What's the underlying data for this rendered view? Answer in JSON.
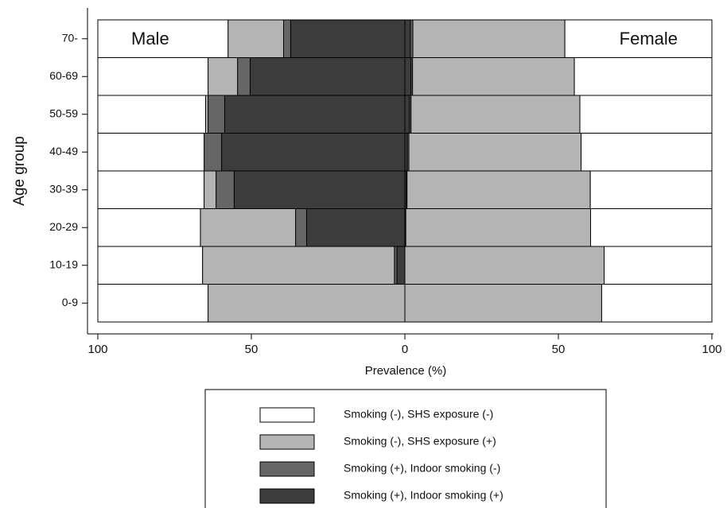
{
  "chart_data": {
    "type": "diverging-stacked-bar",
    "ylabel": "Age group",
    "xlabel": "Prevalence (%)",
    "left_label": "Male",
    "right_label": "Female",
    "categories": [
      "70-",
      "60-69",
      "50-59",
      "40-49",
      "30-39",
      "20-29",
      "10-19",
      "0-9"
    ],
    "xlim": [
      -100,
      100
    ],
    "xticks": [
      {
        "value": -100,
        "label": "100"
      },
      {
        "value": -50,
        "label": "50"
      },
      0,
      50,
      100
    ],
    "series": [
      {
        "name": "Smoking (+), Indoor smoking (+)",
        "color": "#3c3c3c",
        "male": [
          37.2,
          50.4,
          58.7,
          59.7,
          55.6,
          32.0,
          2.6,
          0
        ],
        "female": [
          1.8,
          2.0,
          1.5,
          0.8,
          0.5,
          0.3,
          0,
          0
        ]
      },
      {
        "name": "Smoking (+), Indoor smoking (-)",
        "color": "#666666",
        "male": [
          2.3,
          4.1,
          5.4,
          5.7,
          5.9,
          3.6,
          0.8,
          0
        ],
        "female": [
          0.8,
          0.5,
          0.5,
          0.5,
          0.2,
          0,
          0,
          0
        ]
      },
      {
        "name": "Smoking (-), SHS exposure (+)",
        "color": "#b4b4b4",
        "male": [
          18.1,
          9.6,
          0.8,
          0,
          3.9,
          31.0,
          62.5,
          64.1
        ],
        "female": [
          49.5,
          52.7,
          55.0,
          56.1,
          59.7,
          60.2,
          64.9,
          64.1
        ]
      },
      {
        "name": "Smoking (-), SHS exposure (-)",
        "color": "#ffffff",
        "male": [
          42.4,
          35.9,
          35.1,
          34.6,
          34.6,
          33.4,
          34.1,
          35.9
        ],
        "female": [
          47.9,
          44.8,
          43.0,
          42.6,
          39.6,
          39.5,
          35.1,
          35.9
        ]
      }
    ],
    "legend_order": [
      3,
      2,
      1,
      0
    ]
  }
}
